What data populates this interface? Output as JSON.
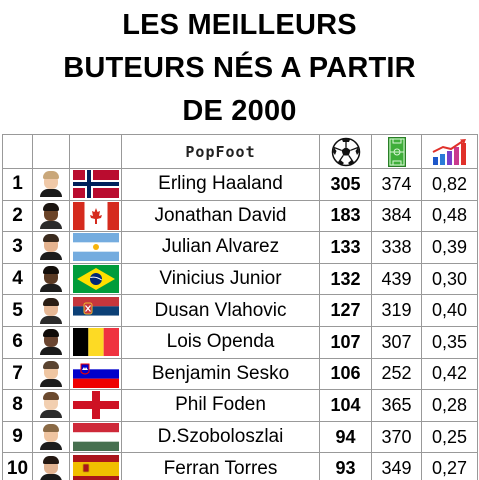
{
  "title": {
    "line1": "LES MEILLEURS",
    "line2": "BUTEURS NÉS A PARTIR",
    "line3": "DE 2000"
  },
  "header": {
    "brand": "PopFoot",
    "goals_icon": "football-icon",
    "matches_icon": "pitch-icon",
    "ratio_icon": "bar-chart-arrow-icon"
  },
  "players": [
    {
      "rank": "1",
      "name": "Erling Haaland",
      "goals": "305",
      "matches": "374",
      "ratio": "0,82",
      "flag": "norway"
    },
    {
      "rank": "2",
      "name": "Jonathan David",
      "goals": "183",
      "matches": "384",
      "ratio": "0,48",
      "flag": "canada"
    },
    {
      "rank": "3",
      "name": "Julian Alvarez",
      "goals": "133",
      "matches": "338",
      "ratio": "0,39",
      "flag": "argentina"
    },
    {
      "rank": "4",
      "name": "Vinicius Junior",
      "goals": "132",
      "matches": "439",
      "ratio": "0,30",
      "flag": "brazil"
    },
    {
      "rank": "5",
      "name": "Dusan Vlahovic",
      "goals": "127",
      "matches": "319",
      "ratio": "0,40",
      "flag": "serbia"
    },
    {
      "rank": "6",
      "name": "Lois Openda",
      "goals": "107",
      "matches": "307",
      "ratio": "0,35",
      "flag": "belgium"
    },
    {
      "rank": "7",
      "name": "Benjamin Sesko",
      "goals": "106",
      "matches": "252",
      "ratio": "0,42",
      "flag": "slovenia"
    },
    {
      "rank": "8",
      "name": "Phil Foden",
      "goals": "104",
      "matches": "365",
      "ratio": "0,28",
      "flag": "england"
    },
    {
      "rank": "9",
      "name": "D.Szoboloszlai",
      "goals": "94",
      "matches": "370",
      "ratio": "0,25",
      "flag": "hungary"
    },
    {
      "rank": "10",
      "name": "Ferran Torres",
      "goals": "93",
      "matches": "349",
      "ratio": "0,27",
      "flag": "spain"
    }
  ]
}
